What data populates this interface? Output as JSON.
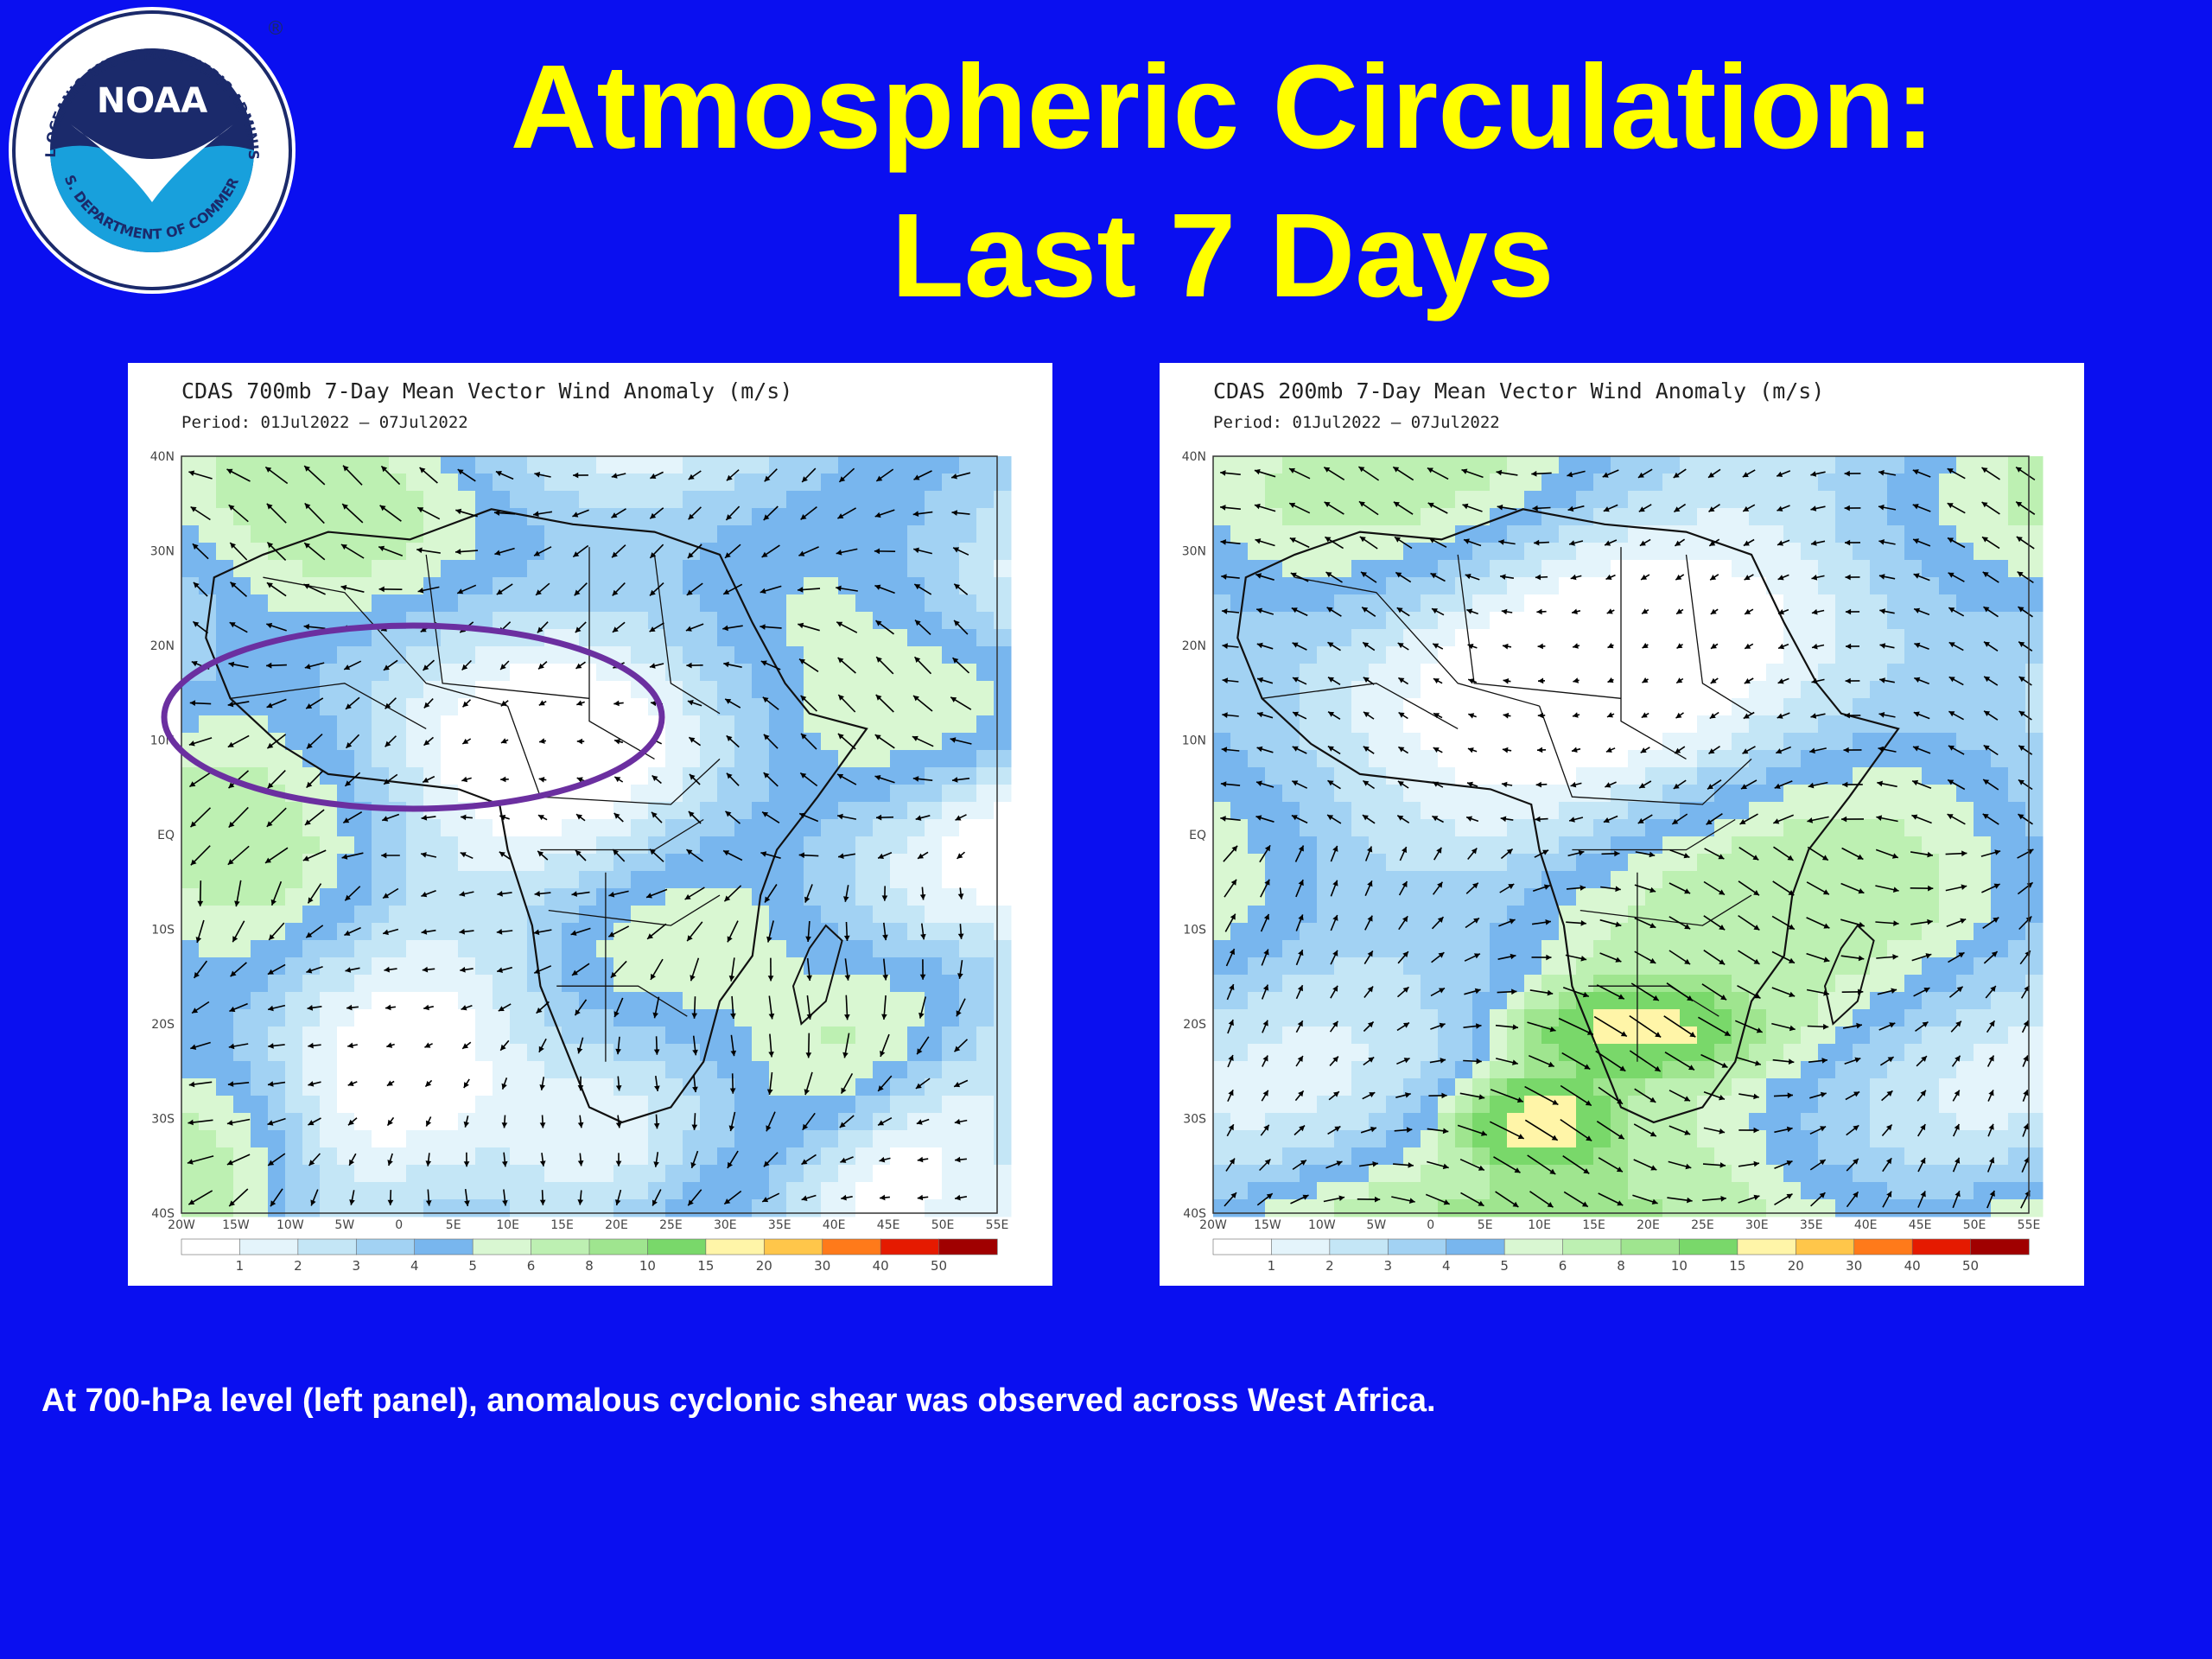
{
  "slide": {
    "title_line1": "Atmospheric Circulation:",
    "title_line2": "Last 7 Days",
    "caption": "At 700-hPa level (left panel), anomalous cyclonic shear was observed across West Africa."
  },
  "logo": {
    "ring_text": "NATIONAL OCEANIC AND ATMOSPHERIC ADMINISTRATION",
    "bottom_text": "U.S. DEPARTMENT OF COMMERCE",
    "center_text": "NOAA",
    "registered": "®"
  },
  "panels": [
    {
      "title": "CDAS 700mb 7-Day Mean Vector Wind Anomaly (m/s)",
      "period": "Period: 01Jul2022 – 07Jul2022",
      "highlight": "ellipse over West Africa"
    },
    {
      "title": "CDAS 200mb 7-Day Mean Vector Wind Anomaly (m/s)",
      "period": "Period: 01Jul2022 – 07Jul2022"
    }
  ],
  "axes": {
    "lat_labels": [
      "40N",
      "30N",
      "20N",
      "10N",
      "EQ",
      "10S",
      "20S",
      "30S",
      "40S"
    ],
    "lon_labels": [
      "20W",
      "15W",
      "10W",
      "5W",
      "0",
      "5E",
      "10E",
      "15E",
      "20E",
      "25E",
      "30E",
      "35E",
      "40E",
      "45E",
      "50E",
      "55E"
    ]
  },
  "colorbar": {
    "labels": [
      "1",
      "2",
      "3",
      "4",
      "5",
      "6",
      "8",
      "10",
      "15",
      "20",
      "30",
      "40",
      "50"
    ],
    "colors": [
      "#ffffff",
      "#e4f4fb",
      "#c4e6f6",
      "#a2d2f3",
      "#78b6ee",
      "#d9f7d2",
      "#bdf0b2",
      "#9fe58f",
      "#79d86a",
      "#fff5a8",
      "#ffc64a",
      "#ff7a1a",
      "#e51a00",
      "#a00000"
    ]
  },
  "colors": {
    "background": "#0a0ff0",
    "title": "#ffff00",
    "caption": "#ffffff",
    "highlight_ellipse": "#6b2fa0"
  }
}
